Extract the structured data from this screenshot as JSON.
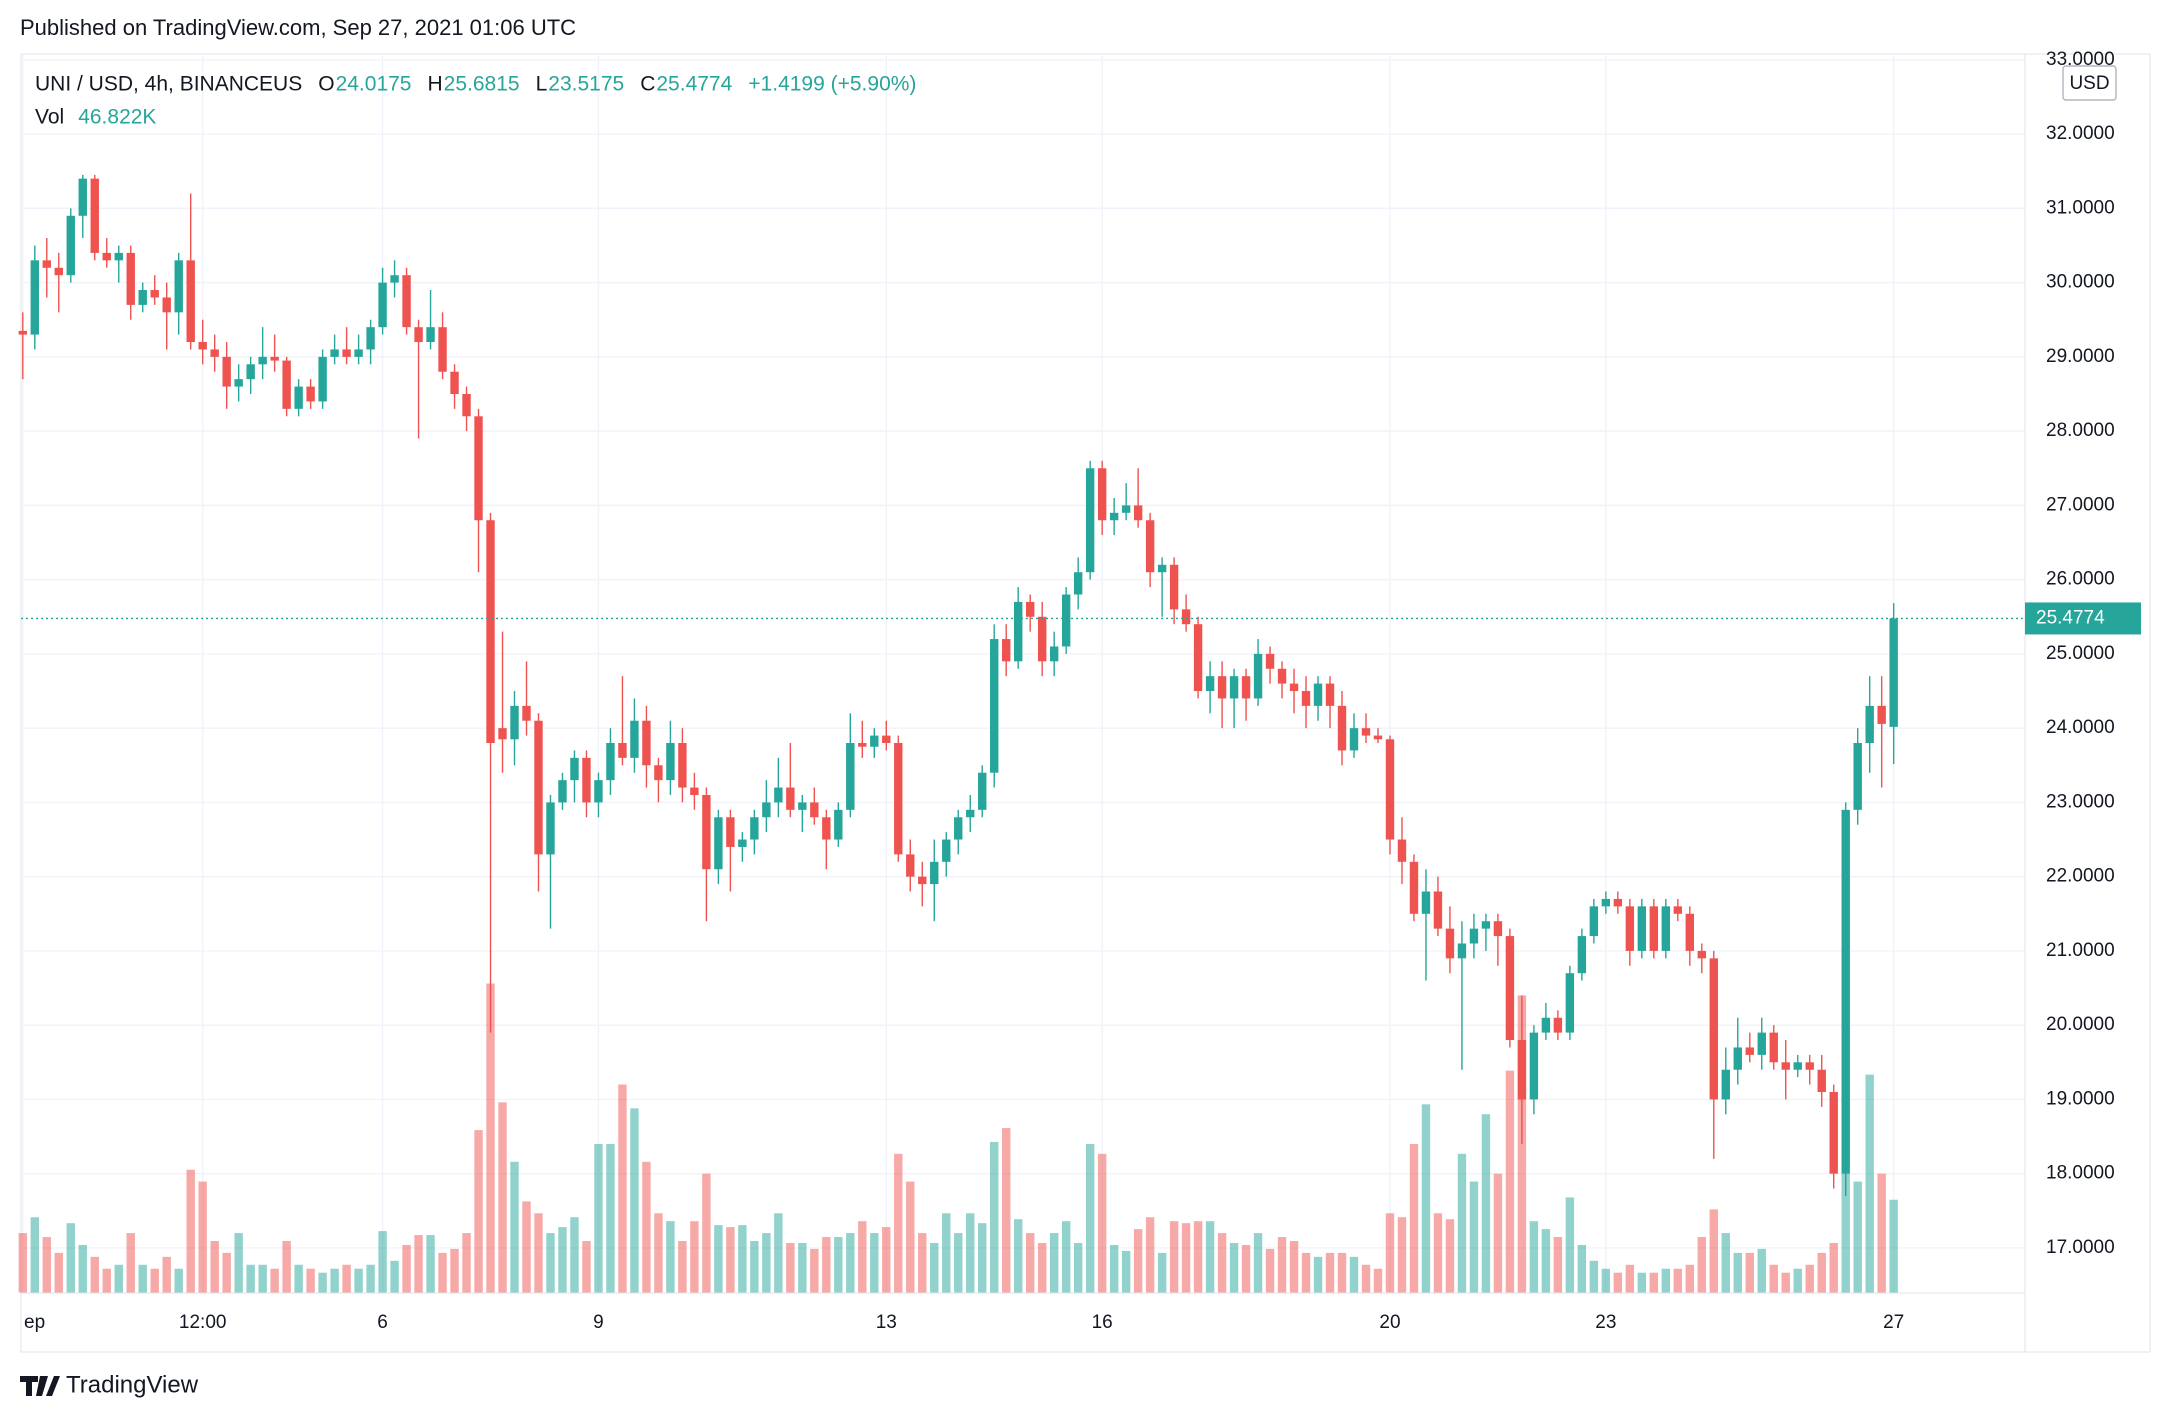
{
  "header": {
    "published": "Published on TradingView.com, Sep 27, 2021 01:06 UTC"
  },
  "footer": {
    "brand": "TradingView"
  },
  "chart_data": {
    "type": "candlestick",
    "title": "UNI / USD, 4h, BINANCEUS",
    "ohlc_letters": [
      "O",
      "H",
      "L",
      "C"
    ],
    "change_label": "+1.4199 (+5.90%)",
    "volume_name": "Vol",
    "volume_label": "46.822K",
    "currency": "USD",
    "up_color": "#26a69a",
    "down_color": "#ef5350",
    "grid": true,
    "xlim": [
      -0.15,
      166.7
    ],
    "xticks": [
      {
        "value": 0,
        "label": "ep"
      },
      {
        "value": 15,
        "label": "12:00"
      },
      {
        "value": 30,
        "label": "6"
      },
      {
        "value": 48,
        "label": "9"
      },
      {
        "value": 72,
        "label": "13"
      },
      {
        "value": 90,
        "label": "16"
      },
      {
        "value": 114,
        "label": "20"
      },
      {
        "value": 132,
        "label": "23"
      },
      {
        "value": 156,
        "label": "27"
      }
    ],
    "ylim": [
      16.4,
      33.2
    ],
    "yticks": [
      {
        "value": 17,
        "label": "17.0000"
      },
      {
        "value": 18,
        "label": "18.0000"
      },
      {
        "value": 19,
        "label": "19.0000"
      },
      {
        "value": 20,
        "label": "20.0000"
      },
      {
        "value": 21,
        "label": "21.0000"
      },
      {
        "value": 22,
        "label": "22.0000"
      },
      {
        "value": 23,
        "label": "23.0000"
      },
      {
        "value": 24,
        "label": "24.0000"
      },
      {
        "value": 25,
        "label": "25.0000"
      },
      {
        "value": 26,
        "label": "26.0000"
      },
      {
        "value": 27,
        "label": "27.0000"
      },
      {
        "value": 28,
        "label": "28.0000"
      },
      {
        "value": 29,
        "label": "29.0000"
      },
      {
        "value": 30,
        "label": "30.0000"
      },
      {
        "value": 31,
        "label": "31.0000"
      },
      {
        "value": 32,
        "label": "32.0000"
      },
      {
        "value": 33,
        "label": "33.0000"
      }
    ],
    "open": [
      29.35,
      29.3,
      30.3,
      30.2,
      30.1,
      30.9,
      31.4,
      30.4,
      30.3,
      30.4,
      29.7,
      29.9,
      29.8,
      29.6,
      30.3,
      29.2,
      29.1,
      29.0,
      28.6,
      28.7,
      28.9,
      29.0,
      28.95,
      28.3,
      28.6,
      28.4,
      29.0,
      29.1,
      29.0,
      29.1,
      29.4,
      30.0,
      30.1,
      29.4,
      29.2,
      29.4,
      28.8,
      28.5,
      28.2,
      26.8,
      24.0,
      23.85,
      24.3,
      24.1,
      22.3,
      23.0,
      23.3,
      23.6,
      23.0,
      23.3,
      23.8,
      23.6,
      24.1,
      23.5,
      23.3,
      23.8,
      23.2,
      23.1,
      22.1,
      22.8,
      22.4,
      22.5,
      22.8,
      23.0,
      23.2,
      22.9,
      23.0,
      22.8,
      22.5,
      22.9,
      23.8,
      23.75,
      23.9,
      23.8,
      22.3,
      22.0,
      21.9,
      22.2,
      22.5,
      22.8,
      22.9,
      23.4,
      25.2,
      24.9,
      25.7,
      25.5,
      24.9,
      25.1,
      25.8,
      26.1,
      27.5,
      26.8,
      26.9,
      27.0,
      26.8,
      26.1,
      26.2,
      25.6,
      25.4,
      24.5,
      24.7,
      24.4,
      24.7,
      24.4,
      25.0,
      24.8,
      24.6,
      24.5,
      24.3,
      24.6,
      24.3,
      23.7,
      24.0,
      23.9,
      23.85,
      22.5,
      22.2,
      21.5,
      21.8,
      21.3,
      20.9,
      21.1,
      21.3,
      21.4,
      21.2,
      19.8,
      19.0,
      19.9,
      20.1,
      19.9,
      20.7,
      21.2,
      21.6,
      21.7,
      21.6,
      21.0,
      21.6,
      21.0,
      21.6,
      21.5,
      21.0,
      20.9,
      19.0,
      19.4,
      19.7,
      19.6,
      19.9,
      19.5,
      19.4,
      19.5,
      19.4,
      19.1,
      18.0,
      22.9,
      23.8,
      24.3,
      24.0175
    ],
    "high": [
      29.6,
      30.5,
      30.6,
      30.4,
      31.0,
      31.45,
      31.45,
      30.6,
      30.5,
      30.5,
      30.0,
      30.1,
      30.0,
      30.4,
      31.2,
      29.5,
      29.3,
      29.2,
      28.9,
      29.0,
      29.4,
      29.3,
      29.0,
      28.7,
      28.7,
      29.1,
      29.3,
      29.4,
      29.3,
      29.5,
      30.2,
      30.3,
      30.2,
      29.5,
      29.9,
      29.6,
      28.9,
      28.6,
      28.3,
      26.9,
      25.3,
      24.5,
      24.9,
      24.2,
      23.1,
      23.4,
      23.7,
      23.7,
      23.4,
      24.0,
      24.7,
      24.4,
      24.3,
      23.6,
      24.1,
      24.0,
      23.4,
      23.2,
      22.9,
      22.9,
      22.6,
      22.9,
      23.3,
      23.6,
      23.8,
      23.1,
      23.2,
      22.9,
      23.0,
      24.2,
      24.1,
      24.0,
      24.1,
      23.9,
      22.5,
      22.2,
      22.5,
      22.6,
      22.9,
      23.1,
      23.5,
      25.4,
      25.4,
      25.9,
      25.8,
      25.7,
      25.3,
      25.9,
      26.3,
      27.6,
      27.6,
      27.1,
      27.3,
      27.5,
      26.9,
      26.3,
      26.3,
      25.8,
      25.5,
      24.9,
      24.9,
      24.8,
      24.8,
      25.2,
      25.1,
      24.9,
      24.8,
      24.7,
      24.7,
      24.7,
      24.5,
      24.2,
      24.2,
      24.0,
      23.9,
      22.8,
      22.3,
      22.1,
      22.0,
      21.6,
      21.4,
      21.5,
      21.5,
      21.5,
      21.3,
      20.4,
      20.0,
      20.3,
      20.2,
      20.8,
      21.3,
      21.7,
      21.8,
      21.8,
      21.7,
      21.7,
      21.7,
      21.7,
      21.7,
      21.6,
      21.1,
      21.0,
      19.7,
      20.1,
      19.9,
      20.1,
      20.0,
      19.8,
      19.6,
      19.6,
      19.6,
      19.2,
      23.0,
      24.0,
      24.7,
      24.7,
      25.6815
    ],
    "low": [
      28.7,
      29.1,
      29.8,
      29.6,
      30.0,
      30.6,
      30.3,
      30.2,
      30.0,
      29.5,
      29.6,
      29.7,
      29.1,
      29.3,
      29.1,
      28.9,
      28.8,
      28.3,
      28.4,
      28.5,
      28.7,
      28.8,
      28.2,
      28.2,
      28.3,
      28.3,
      28.9,
      28.9,
      28.9,
      28.9,
      29.3,
      29.8,
      29.3,
      27.9,
      29.1,
      28.7,
      28.3,
      28.0,
      26.1,
      19.9,
      23.4,
      23.5,
      23.9,
      21.8,
      21.3,
      22.9,
      23.0,
      22.8,
      22.8,
      23.1,
      23.5,
      23.4,
      23.2,
      23.0,
      23.1,
      23.0,
      22.9,
      21.4,
      21.9,
      21.8,
      22.2,
      22.3,
      22.6,
      22.8,
      22.8,
      22.6,
      22.7,
      22.1,
      22.4,
      22.8,
      23.6,
      23.6,
      23.7,
      22.2,
      21.8,
      21.6,
      21.4,
      22.0,
      22.3,
      22.6,
      22.8,
      23.2,
      24.7,
      24.8,
      25.3,
      24.7,
      24.7,
      25.0,
      25.6,
      26.0,
      26.6,
      26.6,
      26.8,
      26.7,
      25.9,
      25.5,
      25.4,
      25.3,
      24.4,
      24.2,
      24.0,
      24.0,
      24.1,
      24.3,
      24.6,
      24.4,
      24.2,
      24.0,
      24.1,
      24.0,
      23.5,
      23.6,
      23.8,
      23.8,
      22.3,
      21.9,
      21.4,
      20.6,
      21.2,
      20.7,
      19.4,
      20.9,
      21.0,
      20.8,
      19.7,
      18.4,
      18.8,
      19.8,
      19.8,
      19.8,
      20.6,
      21.1,
      21.5,
      21.5,
      20.8,
      20.9,
      20.9,
      20.9,
      21.4,
      20.8,
      20.7,
      18.2,
      18.8,
      19.2,
      19.5,
      19.4,
      19.4,
      19.0,
      19.3,
      19.2,
      18.9,
      17.8,
      17.7,
      22.7,
      23.4,
      23.2,
      23.5175
    ],
    "close": [
      29.3,
      30.3,
      30.2,
      30.1,
      30.9,
      31.4,
      30.4,
      30.3,
      30.4,
      29.7,
      29.9,
      29.8,
      29.6,
      30.3,
      29.2,
      29.1,
      29.0,
      28.6,
      28.7,
      28.9,
      29.0,
      28.95,
      28.3,
      28.6,
      28.4,
      29.0,
      29.1,
      29.0,
      29.1,
      29.4,
      30.0,
      30.1,
      29.4,
      29.2,
      29.4,
      28.8,
      28.5,
      28.2,
      26.8,
      23.8,
      23.85,
      24.3,
      24.1,
      22.3,
      23.0,
      23.3,
      23.6,
      23.0,
      23.3,
      23.8,
      23.6,
      24.1,
      23.5,
      23.3,
      23.8,
      23.2,
      23.1,
      22.1,
      22.8,
      22.4,
      22.5,
      22.8,
      23.0,
      23.2,
      22.9,
      23.0,
      22.8,
      22.5,
      22.9,
      23.8,
      23.75,
      23.9,
      23.8,
      22.3,
      22.0,
      21.9,
      22.2,
      22.5,
      22.8,
      22.9,
      23.4,
      25.2,
      24.9,
      25.7,
      25.5,
      24.9,
      25.1,
      25.8,
      26.1,
      27.5,
      26.8,
      26.9,
      27.0,
      26.8,
      26.1,
      26.2,
      25.6,
      25.4,
      24.5,
      24.7,
      24.4,
      24.7,
      24.4,
      25.0,
      24.8,
      24.6,
      24.5,
      24.3,
      24.6,
      24.3,
      23.7,
      24.0,
      23.9,
      23.85,
      22.5,
      22.2,
      21.5,
      21.8,
      21.3,
      20.9,
      21.1,
      21.3,
      21.4,
      21.2,
      19.8,
      19.0,
      19.9,
      20.1,
      19.9,
      20.7,
      21.2,
      21.6,
      21.7,
      21.6,
      21.0,
      21.6,
      21.0,
      21.6,
      21.5,
      21.0,
      20.9,
      19.0,
      19.4,
      19.7,
      19.6,
      19.9,
      19.5,
      19.4,
      19.5,
      19.4,
      19.1,
      18.0,
      22.9,
      23.8,
      24.3,
      24.0575,
      25.4774
    ],
    "volume": [
      30,
      38,
      28,
      20,
      35,
      24,
      18,
      12,
      14,
      30,
      14,
      12,
      18,
      12,
      62,
      56,
      26,
      20,
      30,
      14,
      14,
      12,
      26,
      14,
      12,
      10,
      12,
      14,
      12,
      14,
      31,
      16,
      24,
      29,
      29,
      20,
      22,
      30,
      82,
      156,
      96,
      66,
      46,
      40,
      30,
      33,
      38,
      26,
      75,
      75,
      105,
      93,
      66,
      40,
      36,
      26,
      36,
      60,
      34,
      33,
      34,
      26,
      30,
      40,
      25,
      25,
      22,
      28,
      28,
      30,
      36,
      30,
      33,
      70,
      56,
      30,
      25,
      40,
      30,
      40,
      35,
      76,
      83,
      37,
      30,
      25,
      30,
      36,
      25,
      75,
      70,
      24,
      21,
      32,
      38,
      20,
      36,
      35,
      36,
      36,
      30,
      25,
      24,
      30,
      22,
      28,
      26,
      20,
      18,
      20,
      20,
      18,
      14,
      12,
      40,
      38,
      75,
      95,
      40,
      37,
      70,
      56,
      90,
      60,
      112,
      150,
      36,
      32,
      28,
      48,
      24,
      16,
      12,
      10,
      14,
      10,
      10,
      12,
      12,
      14,
      28,
      42,
      30,
      20,
      20,
      22,
      14,
      10,
      12,
      14,
      20,
      25,
      60,
      56,
      110,
      60,
      46.822
    ]
  }
}
